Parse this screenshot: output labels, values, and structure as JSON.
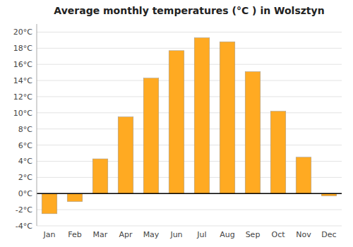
{
  "chart_data": {
    "type": "bar",
    "title": "Average monthly temperatures (°C ) in Wolsztyn",
    "categories": [
      "Jan",
      "Feb",
      "Mar",
      "Apr",
      "May",
      "Jun",
      "Jul",
      "Aug",
      "Sep",
      "Oct",
      "Nov",
      "Dec"
    ],
    "values": [
      -2.5,
      -1.0,
      4.3,
      9.5,
      14.3,
      17.7,
      19.3,
      18.8,
      15.1,
      10.2,
      4.5,
      -0.3
    ],
    "color": "#FFAA22",
    "ylim": [
      -4,
      21
    ],
    "yticks": [
      {
        "value": -4,
        "label": "-4°C"
      },
      {
        "value": -2,
        "label": "-2°C"
      },
      {
        "value": 0,
        "label": "0°C"
      },
      {
        "value": 2,
        "label": "2°C"
      },
      {
        "value": 4,
        "label": "4°C"
      },
      {
        "value": 6,
        "label": "6°C"
      },
      {
        "value": 8,
        "label": "8°C"
      },
      {
        "value": 10,
        "label": "10°C"
      },
      {
        "value": 12,
        "label": "12°C"
      },
      {
        "value": 14,
        "label": "14°C"
      },
      {
        "value": 16,
        "label": "16°C"
      },
      {
        "value": 18,
        "label": "18°C"
      },
      {
        "value": 20,
        "label": "20°C"
      }
    ],
    "grid": true
  }
}
